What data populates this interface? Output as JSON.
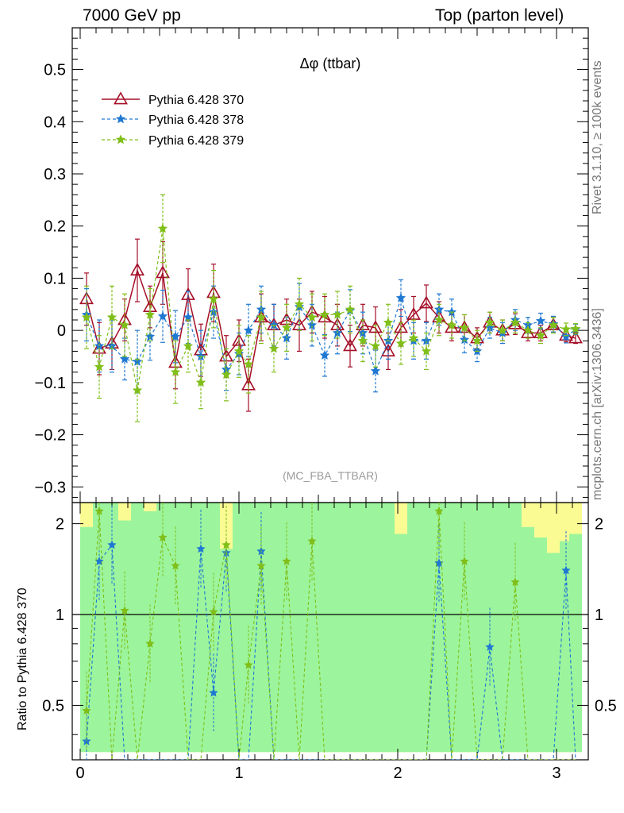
{
  "header": {
    "left": "7000 GeV pp",
    "right": "Top (parton level)"
  },
  "side_labels": {
    "rivet": "Rivet 3.1.10, ≥ 100k events",
    "mcplots": "mcplots.cern.ch [arXiv:1306.3436]"
  },
  "chart_data": [
    {
      "type": "line",
      "title": "Δφ (ttbar)",
      "watermark": "(MC_FBA_TTBAR)",
      "ylim": [
        -0.33,
        0.58
      ],
      "xlim": [
        -0.05,
        3.2
      ],
      "yticks": [
        -0.3,
        -0.2,
        -0.1,
        0,
        0.1,
        0.2,
        0.3,
        0.4,
        0.5
      ],
      "ytick_labels": [
        "−0.3",
        "−0.2",
        "−0.1",
        "0",
        "0.1",
        "0.2",
        "0.3",
        "0.4",
        "0.5"
      ],
      "legend_position": "top-left",
      "colors": {
        "s370": "#a50f28",
        "s378": "#1f78d2",
        "s379": "#80bf1a"
      },
      "x": [
        0.04,
        0.12,
        0.2,
        0.28,
        0.36,
        0.44,
        0.52,
        0.6,
        0.68,
        0.76,
        0.84,
        0.92,
        1.0,
        1.06,
        1.14,
        1.22,
        1.3,
        1.38,
        1.46,
        1.54,
        1.62,
        1.7,
        1.78,
        1.86,
        1.94,
        2.02,
        2.1,
        2.18,
        2.26,
        2.34,
        2.42,
        2.5,
        2.58,
        2.66,
        2.74,
        2.82,
        2.9,
        2.98,
        3.06,
        3.12
      ],
      "series": [
        {
          "name": "Pythia 6.428 370",
          "marker": "triangle",
          "dash": "solid",
          "values": [
            0.06,
            -0.035,
            -0.025,
            0.02,
            0.115,
            0.045,
            0.11,
            -0.062,
            0.068,
            -0.038,
            0.072,
            -0.05,
            -0.02,
            -0.105,
            0.025,
            0.01,
            0.02,
            0.01,
            0.035,
            0.025,
            0.01,
            -0.03,
            0.01,
            0.005,
            -0.04,
            0.005,
            0.03,
            0.052,
            0.025,
            0.005,
            0.005,
            -0.015,
            0.015,
            0.0,
            0.012,
            -0.005,
            -0.005,
            0.01,
            -0.01,
            -0.015
          ],
          "errors": [
            0.05,
            0.05,
            0.05,
            0.04,
            0.06,
            0.04,
            0.06,
            0.05,
            0.05,
            0.05,
            0.055,
            0.04,
            0.04,
            0.05,
            0.045,
            0.04,
            0.04,
            0.05,
            0.04,
            0.04,
            0.04,
            0.04,
            0.04,
            0.04,
            0.035,
            0.035,
            0.035,
            0.035,
            0.03,
            0.025,
            0.025,
            0.02,
            0.02,
            0.02,
            0.02,
            0.015,
            0.015,
            0.015,
            0.012,
            0.01
          ]
        },
        {
          "name": "Pythia 6.428 378",
          "marker": "star",
          "dash": "dashed",
          "values": [
            0.03,
            -0.03,
            -0.03,
            -0.055,
            -0.06,
            -0.012,
            0.027,
            -0.012,
            0.025,
            -0.05,
            0.035,
            -0.075,
            -0.045,
            0.0,
            0.04,
            0.01,
            -0.015,
            0.045,
            0.01,
            -0.048,
            -0.005,
            0.038,
            -0.005,
            -0.078,
            -0.02,
            0.062,
            -0.02,
            -0.02,
            0.04,
            0.035,
            -0.018,
            -0.04,
            0.005,
            -0.005,
            0.02,
            0.01,
            0.018,
            0.012,
            -0.012,
            0.002
          ],
          "errors": [
            0.05,
            0.05,
            0.05,
            0.04,
            0.06,
            0.045,
            0.05,
            0.05,
            0.05,
            0.05,
            0.05,
            0.04,
            0.04,
            0.05,
            0.045,
            0.04,
            0.04,
            0.045,
            0.04,
            0.04,
            0.04,
            0.04,
            0.04,
            0.04,
            0.035,
            0.035,
            0.035,
            0.035,
            0.03,
            0.025,
            0.025,
            0.02,
            0.02,
            0.02,
            0.02,
            0.015,
            0.015,
            0.015,
            0.012,
            0.01
          ]
        },
        {
          "name": "Pythia 6.428 379",
          "marker": "star",
          "dash": "dashed",
          "values": [
            0.025,
            -0.07,
            0.025,
            0.01,
            -0.115,
            0.03,
            0.195,
            -0.08,
            -0.03,
            -0.1,
            0.06,
            -0.085,
            -0.04,
            -0.065,
            0.025,
            -0.035,
            0.005,
            0.05,
            0.025,
            0.03,
            0.03,
            0.04,
            -0.02,
            -0.03,
            0.015,
            -0.025,
            -0.015,
            -0.04,
            0.02,
            0.01,
            0.005,
            -0.02,
            0.015,
            0.0,
            0.015,
            0.0,
            -0.01,
            0.01,
            0.002,
            0.003
          ],
          "errors": [
            0.06,
            0.06,
            0.06,
            0.06,
            0.06,
            0.05,
            0.065,
            0.06,
            0.05,
            0.05,
            0.055,
            0.05,
            0.05,
            0.055,
            0.05,
            0.045,
            0.045,
            0.05,
            0.045,
            0.04,
            0.045,
            0.045,
            0.04,
            0.04,
            0.035,
            0.04,
            0.035,
            0.035,
            0.03,
            0.025,
            0.025,
            0.02,
            0.02,
            0.02,
            0.02,
            0.015,
            0.015,
            0.015,
            0.012,
            0.01
          ]
        }
      ]
    },
    {
      "type": "line",
      "ylabel": "Ratio to Pythia 6.428 370",
      "ylim": [
        0.33,
        2.35
      ],
      "xlim": [
        -0.05,
        3.2
      ],
      "xticks": [
        0,
        1,
        2,
        3
      ],
      "xtick_labels": [
        "0",
        "1",
        "2",
        "3"
      ],
      "yticks": [
        0.5,
        1,
        2
      ],
      "ytick_labels": [
        "0.5",
        "1",
        "2"
      ],
      "reference_line": 1,
      "band_colors": {
        "inner": "#9cf59c",
        "outer": "#fbfb94"
      },
      "x": [
        0.04,
        0.12,
        0.2,
        0.28,
        0.36,
        0.44,
        0.52,
        0.6,
        0.68,
        0.76,
        0.84,
        0.92,
        1.0,
        1.06,
        1.14,
        1.22,
        1.3,
        1.38,
        1.46,
        1.54,
        1.62,
        1.7,
        1.78,
        1.86,
        1.94,
        2.02,
        2.1,
        2.18,
        2.26,
        2.34,
        2.42,
        2.5,
        2.58,
        2.66,
        2.74,
        2.82,
        2.9,
        2.98,
        3.06,
        3.12
      ],
      "band_inner": [
        [
          0.35,
          1.95
        ],
        [
          0.35,
          2.35
        ],
        [
          0.35,
          2.35
        ],
        [
          0.35,
          2.05
        ],
        [
          0.35,
          2.35
        ],
        [
          0.35,
          2.2
        ],
        [
          0.35,
          2.35
        ],
        [
          0.35,
          2.35
        ],
        [
          0.35,
          2.35
        ],
        [
          0.35,
          2.35
        ],
        [
          0.35,
          2.35
        ],
        [
          0.35,
          1.65
        ],
        [
          0.35,
          2.35
        ],
        [
          0.35,
          2.35
        ],
        [
          0.35,
          2.35
        ],
        [
          0.35,
          2.35
        ],
        [
          0.35,
          2.35
        ],
        [
          0.35,
          2.35
        ],
        [
          0.35,
          2.35
        ],
        [
          0.35,
          2.35
        ],
        [
          0.35,
          2.35
        ],
        [
          0.35,
          2.35
        ],
        [
          0.35,
          2.35
        ],
        [
          0.35,
          2.35
        ],
        [
          0.35,
          2.35
        ],
        [
          0.35,
          1.85
        ],
        [
          0.35,
          2.35
        ],
        [
          0.35,
          2.35
        ],
        [
          0.35,
          2.35
        ],
        [
          0.35,
          2.35
        ],
        [
          0.35,
          2.35
        ],
        [
          0.35,
          2.35
        ],
        [
          0.35,
          2.35
        ],
        [
          0.35,
          2.35
        ],
        [
          0.35,
          2.35
        ],
        [
          0.35,
          1.95
        ],
        [
          0.35,
          1.8
        ],
        [
          0.35,
          1.6
        ],
        [
          0.35,
          1.75
        ],
        [
          0.35,
          1.85
        ]
      ],
      "band_outer": [
        [
          0.35,
          2.35
        ],
        [
          0.35,
          2.35
        ],
        [
          0.35,
          2.35
        ],
        [
          0.35,
          2.35
        ],
        [
          0.35,
          2.35
        ],
        [
          0.35,
          2.35
        ],
        [
          0.35,
          2.35
        ],
        [
          0.35,
          2.35
        ],
        [
          0.35,
          2.35
        ],
        [
          0.35,
          2.35
        ],
        [
          0.35,
          2.35
        ],
        [
          0.35,
          2.35
        ],
        [
          0.35,
          2.35
        ],
        [
          0.35,
          2.35
        ],
        [
          0.35,
          2.35
        ],
        [
          0.35,
          2.35
        ],
        [
          0.35,
          2.35
        ],
        [
          0.35,
          2.35
        ],
        [
          0.35,
          2.35
        ],
        [
          0.35,
          2.35
        ],
        [
          0.35,
          2.35
        ],
        [
          0.35,
          2.35
        ],
        [
          0.35,
          2.35
        ],
        [
          0.35,
          2.35
        ],
        [
          0.35,
          2.35
        ],
        [
          0.35,
          2.35
        ],
        [
          0.35,
          2.35
        ],
        [
          0.35,
          2.35
        ],
        [
          0.35,
          2.35
        ],
        [
          0.35,
          2.35
        ],
        [
          0.35,
          2.35
        ],
        [
          0.35,
          2.35
        ],
        [
          0.35,
          2.35
        ],
        [
          0.35,
          2.35
        ],
        [
          0.35,
          2.35
        ],
        [
          0.35,
          2.35
        ],
        [
          0.35,
          2.35
        ],
        [
          0.35,
          2.35
        ],
        [
          0.35,
          2.35
        ],
        [
          0.35,
          2.35
        ]
      ],
      "series": [
        {
          "name": "Pythia 6.428 378",
          "values": [
            0.38,
            1.5,
            1.7,
            0.3,
            0.3,
            0.3,
            0.3,
            0.3,
            0.3,
            1.65,
            0.55,
            1.6,
            0.3,
            0.3,
            1.62,
            0.3,
            0.3,
            0.3,
            0.3,
            0.3,
            0.3,
            0.3,
            0.3,
            0.3,
            0.3,
            0.3,
            0.3,
            0.3,
            1.48,
            0.3,
            0.3,
            0.3,
            0.78,
            0.3,
            0.3,
            0.3,
            0.3,
            0.3,
            1.4,
            0.3
          ]
        },
        {
          "name": "Pythia 6.428 379",
          "values": [
            0.48,
            2.2,
            0.3,
            1.03,
            0.3,
            0.8,
            1.8,
            1.45,
            0.3,
            0.3,
            1.02,
            1.7,
            0.3,
            0.68,
            1.45,
            0.3,
            1.5,
            0.3,
            1.75,
            0.3,
            0.3,
            0.3,
            0.3,
            0.3,
            0.3,
            0.3,
            0.3,
            0.3,
            2.2,
            0.3,
            1.5,
            0.3,
            0.3,
            0.3,
            1.28,
            0.3,
            0.3,
            0.3,
            0.3,
            0.3
          ]
        }
      ]
    }
  ]
}
